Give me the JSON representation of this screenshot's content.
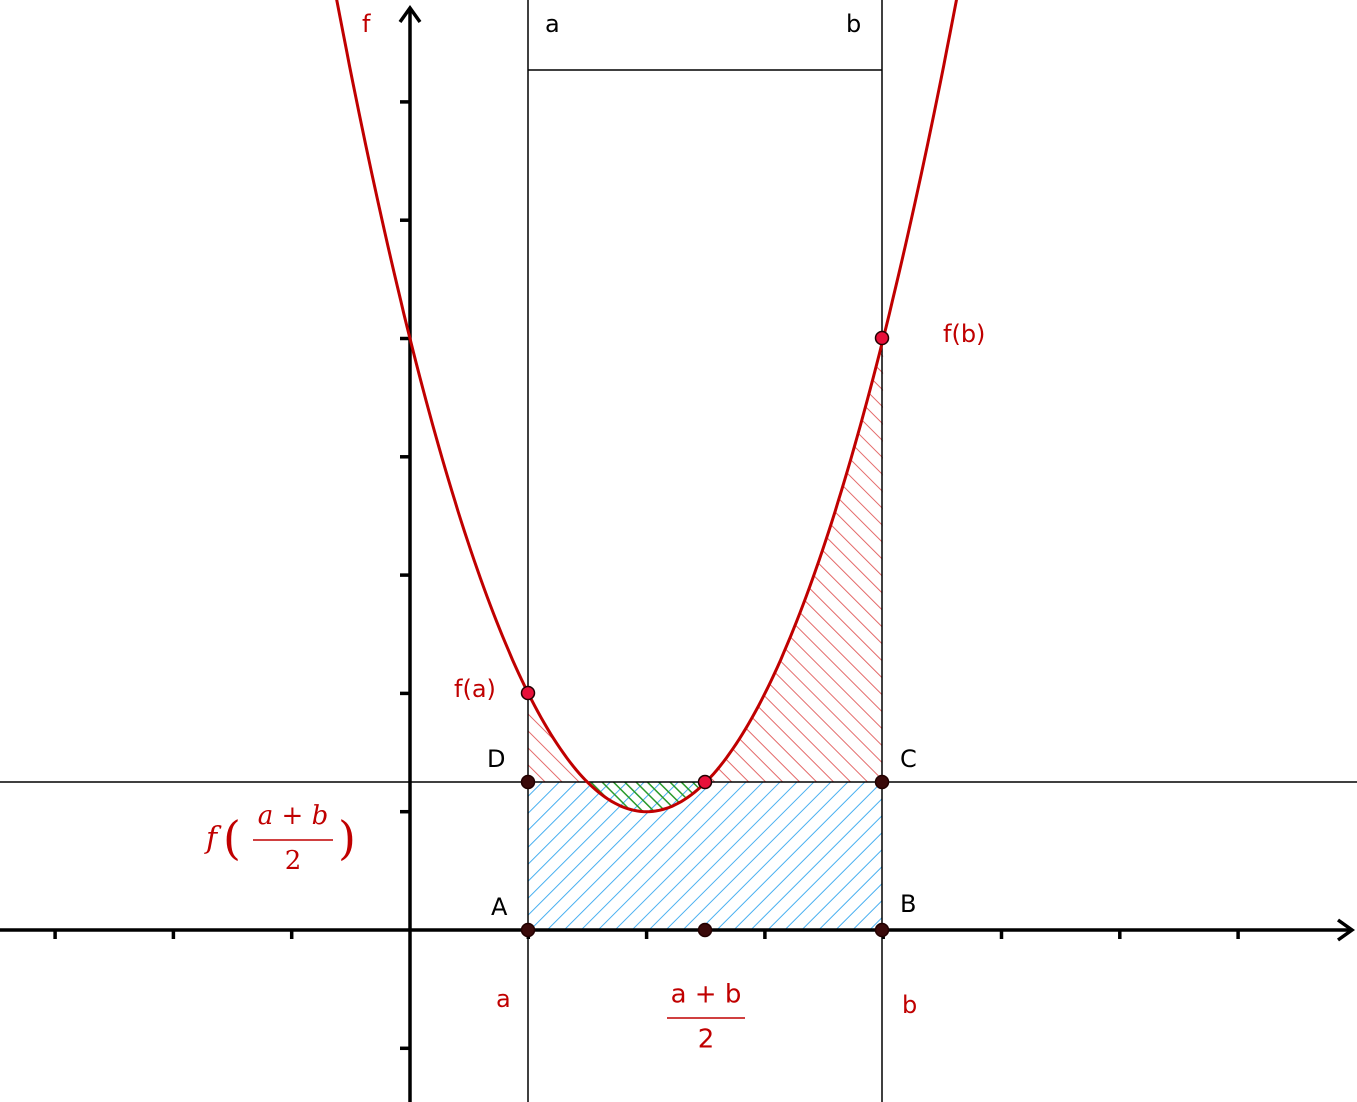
{
  "labels": {
    "f": "f",
    "line_a": "a",
    "line_b": "b",
    "fb": "f(b)",
    "fa": "f(a)",
    "D": "D",
    "C": "C",
    "A": "A",
    "B": "B",
    "axis_a": "a",
    "axis_b": "b",
    "mid_num": "a + b",
    "mid_den": "2",
    "fmid_f": "f",
    "fmid_open": "(",
    "fmid_num": "a + b",
    "fmid_den": "2",
    "fmid_close": ")"
  }
}
